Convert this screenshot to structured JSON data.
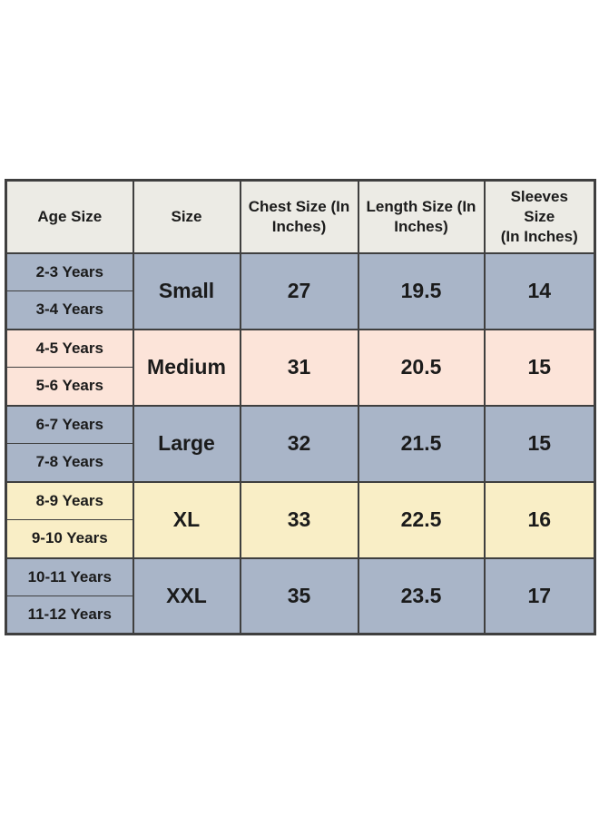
{
  "colors": {
    "page_bg": "#ffffff",
    "border": "#3f3f3f",
    "header_bg": "#ecebe5",
    "section_blue_bg": "#a9b5c8",
    "section_pink_bg": "#fce4d9",
    "section_yellow_bg": "#f9eec6",
    "text": "#1b1b1b"
  },
  "table": {
    "headers": [
      "Age Size",
      "Size",
      "Chest Size (In\nInches)",
      "Length Size (In\nInches)",
      "Sleeves\nSize\n(In Inches)"
    ],
    "sections": [
      {
        "ages": [
          "2-3 Years",
          "3-4 Years"
        ],
        "size": "Small",
        "chest": "27",
        "length": "19.5",
        "sleeves": "14",
        "bg": "blue"
      },
      {
        "ages": [
          "4-5 Years",
          "5-6 Years"
        ],
        "size": "Medium",
        "chest": "31",
        "length": "20.5",
        "sleeves": "15",
        "bg": "pink"
      },
      {
        "ages": [
          "6-7 Years",
          "7-8 Years"
        ],
        "size": "Large",
        "chest": "32",
        "length": "21.5",
        "sleeves": "15",
        "bg": "blue"
      },
      {
        "ages": [
          "8-9 Years",
          "9-10 Years"
        ],
        "size": "XL",
        "chest": "33",
        "length": "22.5",
        "sleeves": "16",
        "bg": "yellow"
      },
      {
        "ages": [
          "10-11 Years",
          "11-12 Years"
        ],
        "size": "XXL",
        "chest": "35",
        "length": "23.5",
        "sleeves": "17",
        "bg": "blue"
      }
    ]
  },
  "chart_data": {
    "type": "table",
    "title": "Kids garment size chart",
    "columns": [
      "Age Size",
      "Size",
      "Chest Size (In Inches)",
      "Length Size (In Inches)",
      "Sleeves Size (In Inches)"
    ],
    "rows": [
      [
        "2-3 Years",
        "Small",
        27,
        19.5,
        14
      ],
      [
        "3-4 Years",
        "Small",
        27,
        19.5,
        14
      ],
      [
        "4-5 Years",
        "Medium",
        31,
        20.5,
        15
      ],
      [
        "5-6 Years",
        "Medium",
        31,
        20.5,
        15
      ],
      [
        "6-7 Years",
        "Large",
        32,
        21.5,
        15
      ],
      [
        "7-8 Years",
        "Large",
        32,
        21.5,
        15
      ],
      [
        "8-9 Years",
        "XL",
        33,
        22.5,
        16
      ],
      [
        "9-10 Years",
        "XL",
        33,
        22.5,
        16
      ],
      [
        "10-11 Years",
        "XXL",
        35,
        23.5,
        17
      ],
      [
        "11-12 Years",
        "XXL",
        35,
        23.5,
        17
      ]
    ],
    "merged_cells": "Size, Chest, Length and Sleeves values each span two consecutive age rows",
    "layout": "header row gray; sections colored blue/pink/blue/yellow/blue; dark 2-3px grid borders"
  }
}
